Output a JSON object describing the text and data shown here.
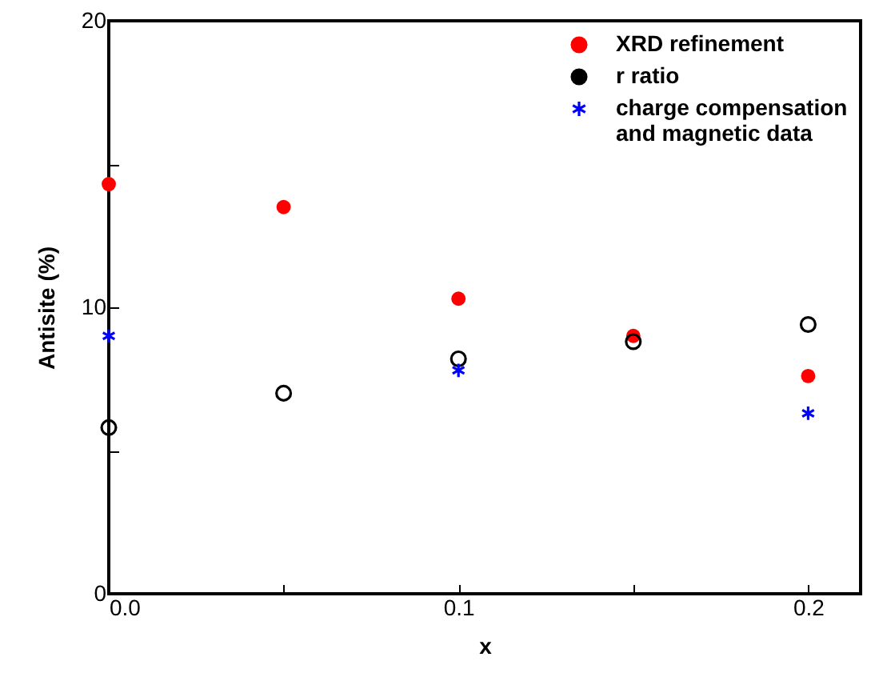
{
  "chart_data": {
    "type": "scatter",
    "xlabel": "x",
    "ylabel": "Antisite (%)",
    "xlim": [
      0,
      0.215
    ],
    "ylim": [
      0,
      20
    ],
    "xticks": [
      {
        "value": 0,
        "label": "0.0"
      },
      {
        "value": 0.05,
        "label": null
      },
      0.1,
      {
        "value": 0.15,
        "label": null
      },
      0.2
    ],
    "yticks": [
      0,
      {
        "value": 5,
        "label": null
      },
      10,
      {
        "value": 15,
        "label": null
      },
      20
    ],
    "grid": false,
    "legend": "top right",
    "series": [
      {
        "name": "XRD refinement",
        "color": "#ff0000",
        "marker": "circle",
        "x": [
          0,
          0.05,
          0.1,
          0.15,
          0.2
        ],
        "values": [
          14.3,
          13.5,
          10.3,
          9.0,
          7.6
        ]
      },
      {
        "name": "r ratio",
        "color": "#000000",
        "marker": "circle",
        "x": [
          0,
          0.05,
          0.1,
          0.15,
          0.2
        ],
        "values": [
          5.8,
          7.0,
          8.2,
          8.8,
          9.4
        ]
      },
      {
        "name": "charge compensation and magnetic data",
        "color": "#0000ff",
        "marker": "cross",
        "x": [
          0,
          0.1,
          0.2
        ],
        "values": [
          9.0,
          7.8,
          6.3
        ]
      }
    ]
  }
}
